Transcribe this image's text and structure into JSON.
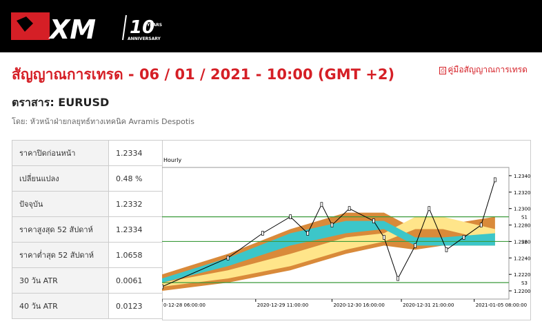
{
  "header": {
    "logo": "XM",
    "badge": "10",
    "badge_sub": "YEARS",
    "badge_caption": "ANNIVERSARY"
  },
  "title": "สัญญาณการเทรด - 06 / 01 / 2021 - 10:00 (GMT +2)",
  "guide_link": "คู่มือสัญญาณการเทรด",
  "instrument": "ตราสาร: EURUSD",
  "author": "โดย: หัวหน้าฝ่ายกลยุทธ์ทางเทคนิค Avramis Despotis",
  "table": {
    "rows": [
      [
        "ราคาปิดก่อนหน้า",
        "1.2334"
      ],
      [
        "เปลี่ยนแปลง",
        "0.48 %"
      ],
      [
        "ปัจจุบัน",
        "1.2332"
      ],
      [
        "ราคาสูงสุด 52 สัปดาห์",
        "1.2334"
      ],
      [
        "ราคาต่ำสุด 52 สัปดาห์",
        "1.0658"
      ],
      [
        "30 วัน ATR",
        "0.0061"
      ],
      [
        "40 วัน ATR",
        "0.0123"
      ]
    ]
  },
  "chart_data": {
    "type": "line",
    "title": "Hourly",
    "x": [
      0,
      19,
      29,
      37,
      42,
      46,
      49,
      54,
      61,
      64,
      68,
      73,
      77,
      82,
      87,
      92,
      96
    ],
    "series": [
      {
        "color": "#000000",
        "values": [
          1.2205,
          1.224,
          1.227,
          1.229,
          1.227,
          1.2305,
          1.228,
          1.23,
          1.2285,
          1.2265,
          1.2215,
          1.2255,
          1.23,
          1.225,
          1.2265,
          1.228,
          1.2335
        ]
      }
    ],
    "bands": {
      "x": [
        0,
        19,
        37,
        53,
        64,
        73,
        81,
        96
      ],
      "series": [
        {
          "color": "#d98a3a",
          "upper": [
            1.222,
            1.2245,
            1.2275,
            1.2295,
            1.2295,
            1.2275,
            1.228,
            1.229
          ],
          "lower": [
            1.22,
            1.221,
            1.2225,
            1.2245,
            1.2255,
            1.225,
            1.2255,
            1.2255
          ]
        },
        {
          "color": "#ffe58a",
          "upper": [
            1.221,
            1.2225,
            1.2245,
            1.2265,
            1.227,
            1.229,
            1.229,
            1.2275
          ],
          "lower": [
            1.2205,
            1.2215,
            1.223,
            1.225,
            1.226,
            1.2275,
            1.2275,
            1.226
          ]
        },
        {
          "color": "#3cc6c9",
          "upper": [
            1.2215,
            1.224,
            1.227,
            1.2285,
            1.2285,
            1.2265,
            1.2265,
            1.227
          ],
          "lower": [
            1.221,
            1.223,
            1.2255,
            1.227,
            1.2275,
            1.2255,
            1.2255,
            1.2255
          ]
        }
      ]
    },
    "levels": [
      {
        "name": "S1",
        "value": 1.229
      },
      {
        "name": "S2",
        "value": 1.226
      },
      {
        "name": "S3",
        "value": 1.221
      }
    ],
    "xlim": [
      0,
      100
    ],
    "xticks": [
      {
        "value": 0,
        "label": "0-12-28 06:00:00"
      },
      {
        "value": 27,
        "label": "2020-12-29 11:00:00"
      },
      {
        "value": 49,
        "label": "2020-12-30 16:00:00"
      },
      {
        "value": 69,
        "label": "2020-12-31 21:00:00"
      },
      {
        "value": 90,
        "label": "2021-01-05 08:00:00"
      }
    ],
    "ylim": [
      1.219,
      1.235
    ],
    "yticks": [
      {
        "value": 1.22,
        "label": "1.2200"
      },
      {
        "value": 1.222,
        "label": "1.2220"
      },
      {
        "value": 1.224,
        "label": "1.2240"
      },
      {
        "value": 1.226,
        "label": "1.2260"
      },
      {
        "value": 1.228,
        "label": "1.2280"
      },
      {
        "value": 1.23,
        "label": "1.2300"
      },
      {
        "value": 1.232,
        "label": "1.2320"
      },
      {
        "value": 1.234,
        "label": "1.2340"
      }
    ]
  }
}
